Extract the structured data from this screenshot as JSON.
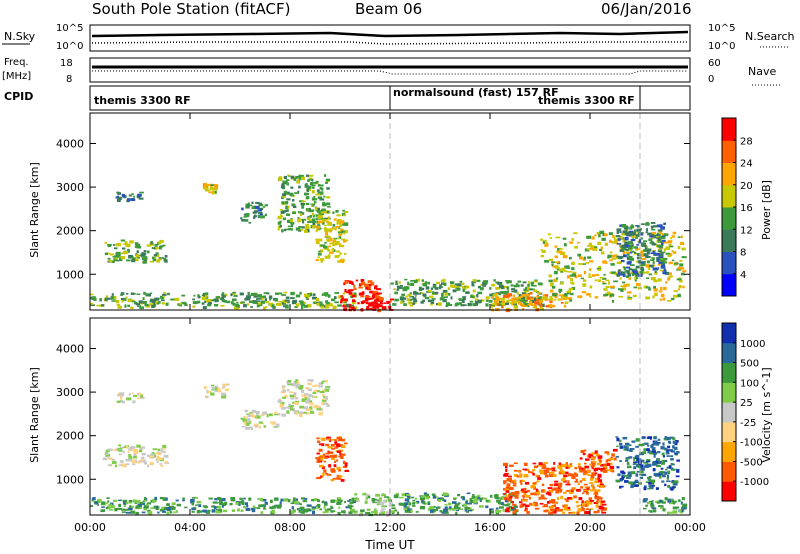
{
  "header": {
    "station": "South Pole Station (fitACF)",
    "beam": "Beam 06",
    "date": "06/Jan/2016"
  },
  "summary_panels": {
    "nsky_label": "N.Sky",
    "nsky_ticks": [
      "10^5",
      "10^0"
    ],
    "nsearch_label": "N.Search",
    "nsearch_ticks": [
      "10^5",
      "10^0"
    ],
    "freq_label_top": "Freq.",
    "freq_label_bottom": "[MHz]",
    "freq_ticks": [
      "18",
      "8"
    ],
    "nave_label": "Nave",
    "nave_ticks": [
      "60",
      "0"
    ],
    "cpid_label": "CPID",
    "cpid_segments": [
      {
        "label": "themis 3300 RF",
        "start_hour": 0,
        "end_hour": 12
      },
      {
        "label": "normalsound (fast) 157 RF",
        "start_hour": 12,
        "end_hour": 22
      },
      {
        "label": "themis 3300 RF",
        "start_hour": 18.5,
        "end_hour": 22
      }
    ]
  },
  "colors": {
    "power": [
      "#0000ff",
      "#2a52be",
      "#3a7a5a",
      "#3c9a3c",
      "#c8c800",
      "#ffa500",
      "#ff6000",
      "#ff0000"
    ],
    "velocity": [
      "#ff0000",
      "#ff5a00",
      "#ffa500",
      "#ffd27f",
      "#c8c8c8",
      "#7ecc48",
      "#3c9a3c",
      "#2a6a9a",
      "#1030b0"
    ]
  },
  "chart_data": [
    {
      "type": "heatmap",
      "parameter": "power",
      "xlabel": "",
      "ylabel": "Slant Range [km]",
      "colorbar_label": "Power [dB]",
      "colorbar_ticks": [
        "28",
        "24",
        "20",
        "16",
        "12",
        "8",
        "4"
      ],
      "xlim": [
        0,
        24
      ],
      "ylim": [
        180,
        4700
      ],
      "yticks": [
        "4000",
        "3000",
        "2000",
        "1000"
      ],
      "regions": [
        {
          "x": [
            0,
            10.6
          ],
          "y": [
            250,
            600
          ],
          "level": 3
        },
        {
          "x": [
            0.5,
            3
          ],
          "y": [
            1300,
            1800
          ],
          "level": 3
        },
        {
          "x": [
            1,
            2
          ],
          "y": [
            2700,
            2900
          ],
          "level": 2
        },
        {
          "x": [
            4.5,
            5
          ],
          "y": [
            2900,
            3100
          ],
          "level": 4
        },
        {
          "x": [
            6,
            7
          ],
          "y": [
            2200,
            2700
          ],
          "level": 2
        },
        {
          "x": [
            7.5,
            9.5
          ],
          "y": [
            2000,
            3300
          ],
          "level": 3
        },
        {
          "x": [
            9,
            10.2
          ],
          "y": [
            1300,
            2500
          ],
          "level": 4
        },
        {
          "x": [
            10,
            11.5
          ],
          "y": [
            200,
            900
          ],
          "level": 7
        },
        {
          "x": [
            11,
            12
          ],
          "y": [
            200,
            600
          ],
          "level": 7
        },
        {
          "x": [
            12,
            18
          ],
          "y": [
            300,
            900
          ],
          "level": 3
        },
        {
          "x": [
            16,
            19
          ],
          "y": [
            200,
            600
          ],
          "level": 5
        },
        {
          "x": [
            18,
            23.7
          ],
          "y": [
            400,
            2000
          ],
          "level": 4
        },
        {
          "x": [
            21,
            23
          ],
          "y": [
            1000,
            2200
          ],
          "level": 2
        }
      ]
    },
    {
      "type": "heatmap",
      "parameter": "velocity",
      "xlabel": "Time UT",
      "ylabel": "Slant Range [km]",
      "colorbar_label": "Velocity [m s^-1]",
      "colorbar_ticks": [
        "1000",
        "500",
        "100",
        "25",
        "-25",
        "-100",
        "-500",
        "-1000"
      ],
      "xlim": [
        0,
        24
      ],
      "ylim": [
        180,
        4700
      ],
      "yticks": [
        "4000",
        "3000",
        "2000",
        "1000"
      ],
      "xticks": [
        "00:00",
        "04:00",
        "08:00",
        "12:00",
        "16:00",
        "20:00",
        "00:00"
      ],
      "regions": [
        {
          "x": [
            0,
            10.6
          ],
          "y": [
            250,
            600
          ],
          "level": 6
        },
        {
          "x": [
            0.5,
            3
          ],
          "y": [
            1300,
            1800
          ],
          "level": 4
        },
        {
          "x": [
            1,
            2
          ],
          "y": [
            2800,
            3000
          ],
          "level": 4
        },
        {
          "x": [
            4.5,
            5.5
          ],
          "y": [
            2900,
            3200
          ],
          "level": 4
        },
        {
          "x": [
            6,
            7.5
          ],
          "y": [
            2200,
            2600
          ],
          "level": 4
        },
        {
          "x": [
            7.5,
            9.5
          ],
          "y": [
            2500,
            3300
          ],
          "level": 4
        },
        {
          "x": [
            9,
            10.2
          ],
          "y": [
            1000,
            2000
          ],
          "level": 1
        },
        {
          "x": [
            10.5,
            12
          ],
          "y": [
            200,
            700
          ],
          "level": 5
        },
        {
          "x": [
            12,
            17
          ],
          "y": [
            250,
            700
          ],
          "level": 6
        },
        {
          "x": [
            16.5,
            20.5
          ],
          "y": [
            250,
            1400
          ],
          "level": 1
        },
        {
          "x": [
            19.5,
            21
          ],
          "y": [
            1200,
            1700
          ],
          "level": 1
        },
        {
          "x": [
            21,
            23.5
          ],
          "y": [
            800,
            2000
          ],
          "level": 7
        },
        {
          "x": [
            22,
            23.8
          ],
          "y": [
            250,
            600
          ],
          "level": 6
        }
      ]
    }
  ]
}
